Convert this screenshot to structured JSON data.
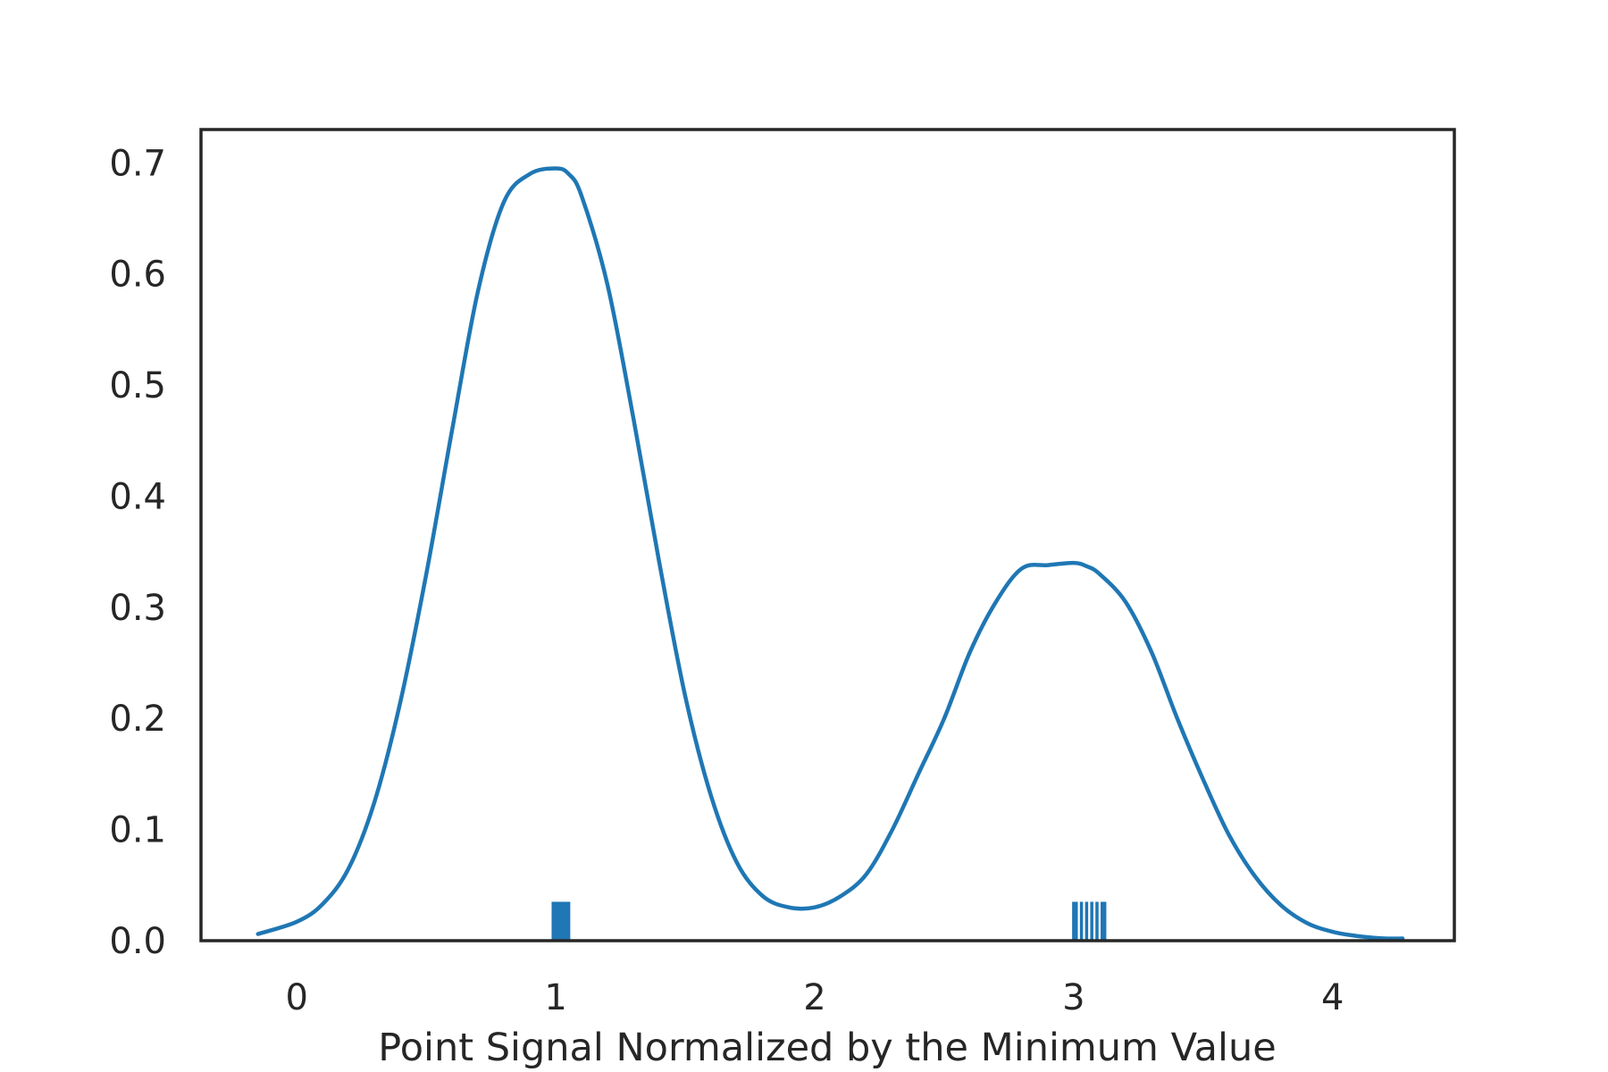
{
  "chart_data": {
    "type": "line",
    "title": "",
    "xlabel": "Point Signal Normalized by the Minimum Value",
    "ylabel": "",
    "xlim": [
      -0.37,
      4.47
    ],
    "ylim": [
      0.0,
      0.73
    ],
    "xticks": [
      0,
      1,
      2,
      3,
      4
    ],
    "xtick_labels": [
      "0",
      "1",
      "2",
      "3",
      "4"
    ],
    "yticks": [
      0.0,
      0.1,
      0.2,
      0.3,
      0.4,
      0.5,
      0.6,
      0.7
    ],
    "ytick_labels": [
      "0.0",
      "0.1",
      "0.2",
      "0.3",
      "0.4",
      "0.5",
      "0.6",
      "0.7"
    ],
    "grid": false,
    "series": [
      {
        "kind": "kde-curve",
        "color": "#1f77b4",
        "x": [
          -0.15,
          0.0,
          0.1,
          0.2,
          0.3,
          0.4,
          0.5,
          0.6,
          0.7,
          0.8,
          0.9,
          1.0,
          1.05,
          1.1,
          1.2,
          1.3,
          1.4,
          1.5,
          1.6,
          1.7,
          1.8,
          1.9,
          2.0,
          2.1,
          2.2,
          2.3,
          2.4,
          2.5,
          2.6,
          2.7,
          2.8,
          2.9,
          3.0,
          3.05,
          3.1,
          3.2,
          3.3,
          3.4,
          3.5,
          3.6,
          3.7,
          3.8,
          3.9,
          4.0,
          4.1,
          4.2,
          4.27
        ],
        "y": [
          0.006,
          0.017,
          0.033,
          0.065,
          0.125,
          0.215,
          0.33,
          0.46,
          0.585,
          0.665,
          0.69,
          0.695,
          0.69,
          0.67,
          0.59,
          0.47,
          0.34,
          0.22,
          0.13,
          0.07,
          0.04,
          0.03,
          0.03,
          0.04,
          0.06,
          0.1,
          0.15,
          0.2,
          0.26,
          0.305,
          0.335,
          0.338,
          0.34,
          0.337,
          0.33,
          0.305,
          0.26,
          0.2,
          0.145,
          0.095,
          0.058,
          0.032,
          0.016,
          0.008,
          0.004,
          0.002,
          0.002
        ]
      }
    ],
    "rug": {
      "color": "#1f77b4",
      "height": 0.035,
      "x": [
        0.99,
        1.0,
        1.01,
        1.02,
        1.03,
        1.04,
        1.05,
        3.0,
        3.01,
        3.03,
        3.05,
        3.07,
        3.09,
        3.11,
        3.12
      ]
    }
  }
}
